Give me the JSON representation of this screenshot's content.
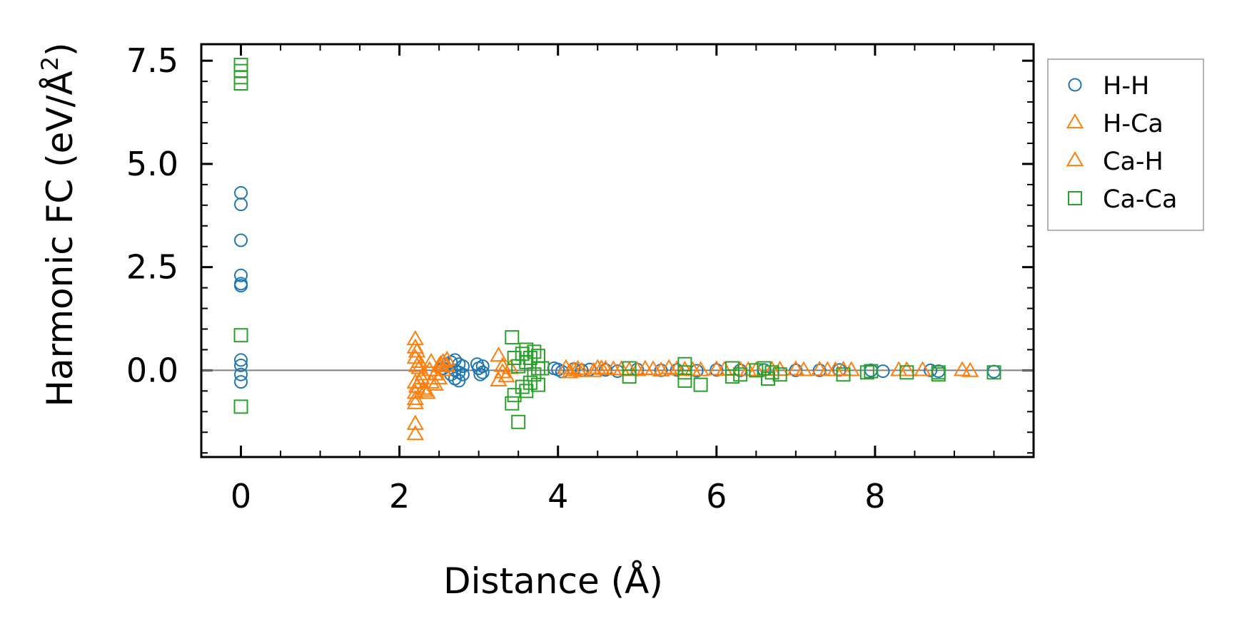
{
  "chart_data": {
    "type": "scatter",
    "title": "",
    "xlabel": "Distance (Å)",
    "ylabel_main": "Harmonic FC (eV/Å",
    "ylabel_sup": "2",
    "ylabel_close": ")",
    "xlim": [
      -0.5,
      10.0
    ],
    "ylim": [
      -2.1,
      7.9
    ],
    "xticks": [
      0,
      2,
      4,
      6,
      8
    ],
    "xtick_labels": [
      "0",
      "2",
      "4",
      "6",
      "8"
    ],
    "xminor_step": 0.5,
    "yticks": [
      0.0,
      2.5,
      5.0,
      7.5
    ],
    "ytick_labels": [
      "0.0",
      "2.5",
      "5.0",
      "7.5"
    ],
    "yminor_step": 0.5,
    "zero_line": true,
    "grid": false,
    "legend_position": "outside-right-top",
    "series": [
      {
        "name": "H-H",
        "marker": "circle",
        "color": "#1f77b4",
        "x": [
          0,
          0,
          0,
          0,
          0,
          0,
          0,
          0,
          0,
          0,
          2.55,
          2.6,
          2.65,
          2.65,
          2.7,
          2.7,
          2.7,
          2.75,
          2.75,
          2.75,
          2.8,
          2.8,
          2.98,
          3.0,
          3.02,
          3.05,
          3.05,
          3.95,
          4.0,
          4.05,
          4.2,
          4.3,
          4.4,
          4.6,
          4.75,
          5.0,
          5.3,
          5.5,
          5.75,
          6.0,
          6.3,
          6.6,
          7.0,
          7.3,
          7.55,
          7.95,
          8.1,
          8.7,
          8.8,
          9.5
        ],
        "y": [
          4.3,
          4.02,
          3.15,
          2.3,
          2.1,
          2.05,
          0.25,
          0.12,
          -0.1,
          -0.28,
          0.05,
          0.15,
          0.2,
          -0.1,
          0.25,
          0.0,
          -0.2,
          0.15,
          -0.05,
          -0.25,
          0.1,
          -0.1,
          0.15,
          0.05,
          -0.1,
          0.1,
          -0.05,
          0.05,
          0.02,
          -0.03,
          0.03,
          0.0,
          0.02,
          0.01,
          -0.02,
          0.02,
          0.0,
          0.01,
          -0.01,
          0.01,
          0.0,
          0.01,
          0.0,
          0.0,
          0.01,
          0.0,
          -0.02,
          0.0,
          -0.02,
          -0.03
        ]
      },
      {
        "name": "H-Ca",
        "marker": "triangle",
        "color": "#ff7f0e",
        "x": [
          2.2,
          2.2,
          2.2,
          2.2,
          2.2,
          2.2,
          2.2,
          2.22,
          2.22,
          2.25,
          2.25,
          2.3,
          2.3,
          2.35,
          2.4,
          2.4,
          2.45,
          2.5,
          2.5,
          2.55,
          2.55,
          2.6,
          3.25,
          3.25,
          3.3,
          3.4,
          4.1,
          4.2,
          4.3,
          4.5,
          4.6,
          4.8,
          5.0,
          5.2,
          5.4,
          5.6,
          5.8,
          6.0,
          6.3,
          6.5,
          6.8,
          7.0,
          7.3,
          7.5,
          7.7,
          8.3,
          8.6,
          9.1,
          9.2
        ],
        "y": [
          0.75,
          0.55,
          0.3,
          -0.3,
          -0.55,
          -0.8,
          -1.3,
          0.1,
          -0.4,
          0.2,
          -0.3,
          -0.1,
          -0.45,
          -0.55,
          0.2,
          -0.3,
          -0.1,
          0.1,
          -0.2,
          0.2,
          0.0,
          0.1,
          0.35,
          -0.25,
          -0.05,
          0.05,
          0.05,
          0.0,
          -0.02,
          0.05,
          0.03,
          0.02,
          0.0,
          0.02,
          0.05,
          0.01,
          0.0,
          0.02,
          0.01,
          0.0,
          0.01,
          0.02,
          0.01,
          0.0,
          0.0,
          0.0,
          0.0,
          0.0,
          -0.02
        ]
      },
      {
        "name": "Ca-H",
        "marker": "triangle",
        "color": "#ff7f0e",
        "x": [
          2.2,
          2.2,
          2.22,
          2.25,
          2.28,
          2.32,
          2.38,
          2.45,
          2.52,
          2.6,
          3.3,
          3.35,
          4.15,
          4.25,
          4.45,
          4.55,
          4.7,
          4.9,
          5.1,
          5.3,
          5.5,
          5.7,
          6.1,
          6.4,
          6.7,
          7.1,
          7.4,
          7.6,
          8.4
        ],
        "y": [
          -1.55,
          -0.7,
          0.45,
          0.05,
          -0.2,
          -0.5,
          0.0,
          -0.35,
          0.15,
          0.25,
          0.1,
          -0.15,
          -0.05,
          0.03,
          -0.02,
          0.04,
          0.02,
          0.0,
          0.03,
          -0.01,
          0.02,
          0.0,
          0.01,
          0.0,
          0.01,
          0.0,
          0.0,
          0.01,
          0.0
        ]
      },
      {
        "name": "Ca-Ca",
        "marker": "square",
        "color": "#2ca02c",
        "x": [
          0,
          0,
          0,
          0,
          0,
          0,
          3.42,
          3.42,
          3.45,
          3.45,
          3.5,
          3.5,
          3.55,
          3.55,
          3.6,
          3.6,
          3.6,
          3.65,
          3.65,
          3.7,
          3.7,
          3.75,
          3.75,
          3.75,
          3.8,
          4.9,
          4.9,
          5.6,
          5.6,
          5.6,
          5.8,
          6.2,
          6.2,
          6.3,
          6.5,
          6.6,
          6.65,
          6.7,
          6.8,
          7.6,
          7.9,
          7.95,
          8.4,
          8.8,
          8.8,
          9.5
        ],
        "y": [
          7.4,
          7.25,
          7.1,
          6.95,
          0.85,
          -0.88,
          0.8,
          -0.8,
          0.3,
          -0.6,
          0.1,
          -1.25,
          0.4,
          -0.4,
          0.5,
          0.2,
          -0.5,
          0.3,
          -0.3,
          0.45,
          -0.1,
          0.35,
          0.05,
          -0.35,
          0.05,
          0.05,
          -0.15,
          0.15,
          -0.05,
          -0.25,
          -0.35,
          0.05,
          -0.15,
          -0.1,
          0.0,
          0.05,
          -0.2,
          -0.05,
          -0.1,
          -0.1,
          -0.05,
          -0.02,
          -0.05,
          -0.05,
          -0.1,
          -0.05
        ]
      }
    ]
  }
}
